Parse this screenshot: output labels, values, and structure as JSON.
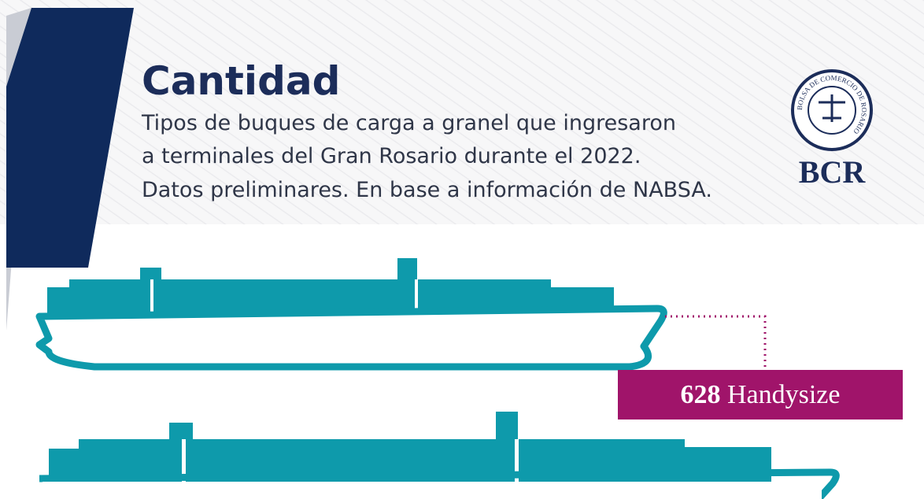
{
  "header": {
    "title": "Cantidad",
    "subtitle": [
      "Tipos de buques de carga a granel que ingresaron",
      "a terminales del Gran Rosario durante el 2022.",
      "Datos preliminares. En base a información de NABSA."
    ]
  },
  "logo": {
    "ring_text": "BOLSA DE COMERCIO DE ROSARIO",
    "text": "BCR"
  },
  "items": [
    {
      "count": "628",
      "label": "Handysize"
    }
  ]
}
